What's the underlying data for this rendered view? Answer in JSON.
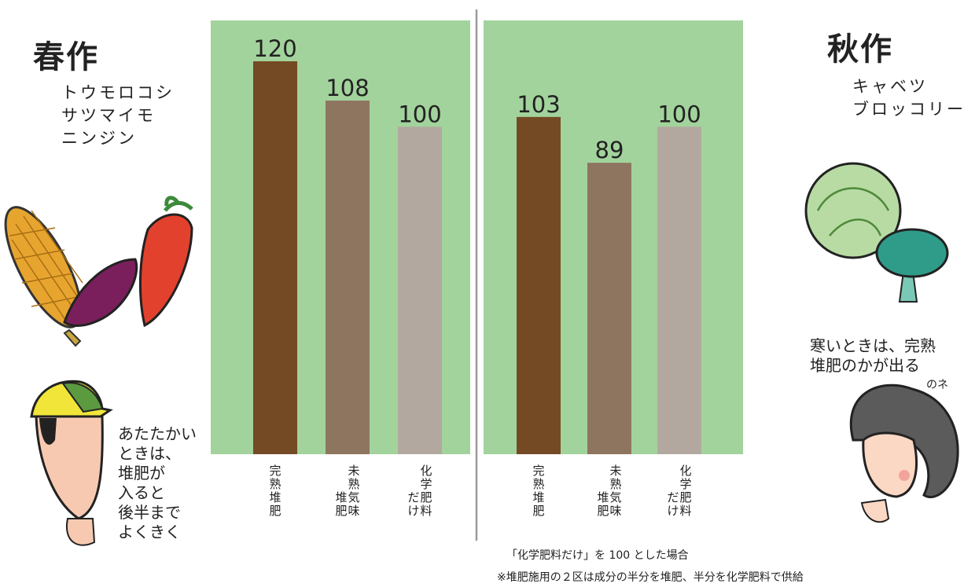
{
  "spring": {
    "title": "春作",
    "crops": [
      "トウモロコシ",
      "サツマイモ",
      "ニンジン"
    ],
    "note": [
      "あたたかい",
      "ときは、",
      "堆肥が",
      "入ると",
      "後半まで",
      "よくきく"
    ]
  },
  "autumn": {
    "title": "秋作",
    "crops": [
      "キャベツ",
      "ブロッコリー"
    ],
    "note": [
      "寒いときは、完熟",
      "堆肥のかが出る",
      "のネ"
    ]
  },
  "footnotes": {
    "base": "「化学肥料だけ」を 100 とした場合",
    "method": "※堆肥施用の２区は成分の半分を堆肥、半分を化学肥料で供給"
  },
  "chart_data": [
    {
      "type": "bar",
      "categories": [
        [
          "完",
          "熟",
          "堆",
          "肥"
        ],
        [
          "未",
          "熟",
          "気",
          "味",
          "",
          "堆",
          "肥"
        ],
        [
          "化",
          "学",
          "肥",
          "料",
          "",
          "だ",
          "け"
        ]
      ],
      "values": [
        120,
        108,
        100
      ],
      "ylim": [
        0,
        120
      ]
    },
    {
      "type": "bar",
      "categories": [
        [
          "完",
          "熟",
          "堆",
          "肥"
        ],
        [
          "未",
          "熟",
          "気",
          "味",
          "",
          "堆",
          "肥"
        ],
        [
          "化",
          "学",
          "肥",
          "料",
          "",
          "だ",
          "け"
        ]
      ],
      "values": [
        103,
        89,
        100
      ],
      "ylim": [
        0,
        120
      ]
    }
  ],
  "colors": {
    "panel": "#a2d39c",
    "bars": [
      "#744a24",
      "#8e7560",
      "#b3a8a0"
    ]
  }
}
